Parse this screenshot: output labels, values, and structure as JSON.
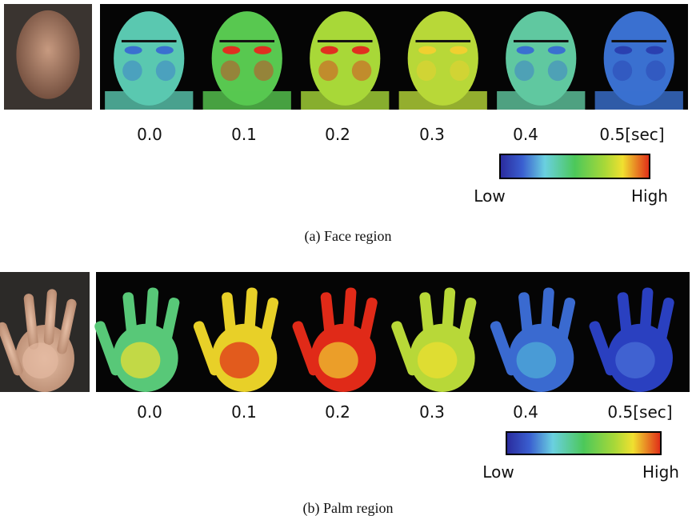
{
  "panels": [
    {
      "time_labels": [
        "0.0",
        "0.1",
        "0.2",
        "0.3",
        "0.4",
        "0.5[sec]"
      ],
      "colorbar": {
        "low": "Low",
        "high": "High"
      },
      "caption": "(a)  Face region"
    },
    {
      "time_labels": [
        "0.0",
        "0.1",
        "0.2",
        "0.3",
        "0.4",
        "0.5[sec]"
      ],
      "colorbar": {
        "low": "Low",
        "high": "High"
      },
      "caption": "(b)  Palm region"
    }
  ]
}
